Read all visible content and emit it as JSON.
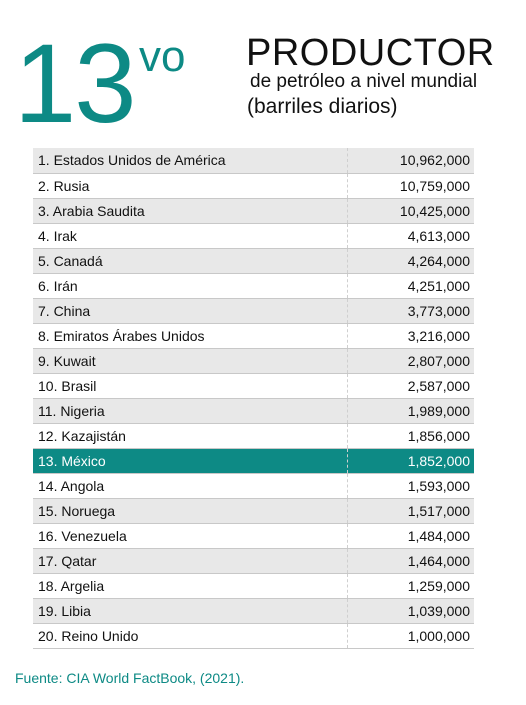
{
  "header": {
    "rank_number": "13",
    "rank_suffix": "vo",
    "title": "PRODUCTOR",
    "subtitle_line1": "de petróleo a nivel mundial",
    "subtitle_line2": "(barriles diarios)"
  },
  "colors": {
    "accent": "#0d8a85",
    "row_shade": "#e8e8e8"
  },
  "highlight_index": 12,
  "rows": [
    {
      "country": "1. Estados Unidos de América",
      "value": "10,962,000"
    },
    {
      "country": "2. Rusia",
      "value": "10,759,000"
    },
    {
      "country": "3. Arabia Saudita",
      "value": "10,425,000"
    },
    {
      "country": "4. Irak",
      "value": "4,613,000"
    },
    {
      "country": "5. Canadá",
      "value": "4,264,000"
    },
    {
      "country": "6. Irán",
      "value": "4,251,000"
    },
    {
      "country": "7. China",
      "value": "3,773,000"
    },
    {
      "country": "8. Emiratos Árabes Unidos",
      "value": "3,216,000"
    },
    {
      "country": "9. Kuwait",
      "value": "2,807,000"
    },
    {
      "country": "10. Brasil",
      "value": "2,587,000"
    },
    {
      "country": "11. Nigeria",
      "value": "1,989,000"
    },
    {
      "country": "12. Kazajistán",
      "value": "1,856,000"
    },
    {
      "country": "13. México",
      "value": "1,852,000"
    },
    {
      "country": "14. Angola",
      "value": "1,593,000"
    },
    {
      "country": "15. Noruega",
      "value": "1,517,000"
    },
    {
      "country": "16. Venezuela",
      "value": "1,484,000"
    },
    {
      "country": "17. Qatar",
      "value": "1,464,000"
    },
    {
      "country": "18. Argelia",
      "value": "1,259,000"
    },
    {
      "country": "19. Libia",
      "value": "1,039,000"
    },
    {
      "country": "20. Reino Unido",
      "value": "1,000,000"
    }
  ],
  "source": "Fuente: CIA World FactBook, (2021)."
}
